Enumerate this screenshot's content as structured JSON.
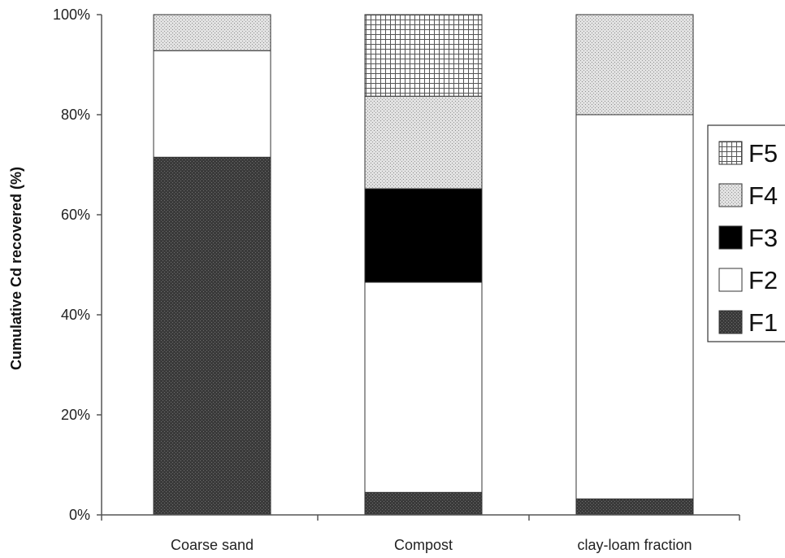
{
  "chart_data": {
    "type": "bar",
    "stacked": true,
    "normalized_percent": true,
    "categories": [
      "Coarse sand",
      "Compost",
      "clay-loam fraction"
    ],
    "ylabel": "Cumulative Cd recovered (%)",
    "xlabel": "",
    "ylim": [
      0,
      100
    ],
    "yticks": [
      "0%",
      "20%",
      "40%",
      "60%",
      "80%",
      "100%"
    ],
    "ytick_values": [
      0,
      20,
      40,
      60,
      80,
      100
    ],
    "grid": false,
    "legend_position": "right",
    "legend_order": [
      "F5",
      "F4",
      "F3",
      "F2",
      "F1"
    ],
    "series": [
      {
        "name": "F1",
        "pattern": "dark-dotted",
        "values": [
          71.5,
          4.5,
          3.2
        ]
      },
      {
        "name": "F2",
        "pattern": "white",
        "values": [
          21.3,
          42.0,
          76.8
        ]
      },
      {
        "name": "F3",
        "pattern": "solid-black",
        "values": [
          0,
          18.7,
          0
        ]
      },
      {
        "name": "F4",
        "pattern": "light-dotted",
        "values": [
          7.2,
          18.5,
          20.0
        ]
      },
      {
        "name": "F5",
        "pattern": "crosshatch",
        "values": [
          0,
          16.3,
          0
        ]
      }
    ]
  }
}
